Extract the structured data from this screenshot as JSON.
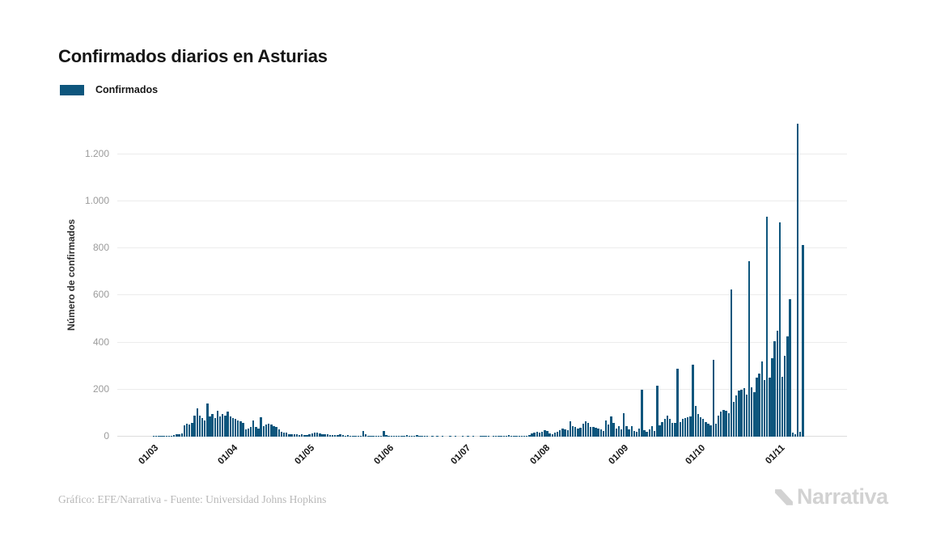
{
  "header": {
    "title": "Confirmados diarios en Asturias"
  },
  "legend": {
    "label": "Confirmados"
  },
  "footer": {
    "credit": "Gráfico: EFE/Narrativa - Fuente: Universidad Johns Hopkins",
    "logo_text": "Narrativa"
  },
  "chart_data": {
    "type": "bar",
    "title": "Confirmados diarios en Asturias",
    "series_name": "Confirmados",
    "ylabel": "Número de confirmados",
    "xlabel": "",
    "ylim": [
      0,
      1375
    ],
    "grid": "horizontal",
    "legend_position": "top-left",
    "bar_color": "#0e567d",
    "grid_color": "#ececec",
    "axis_color": "#dcdcdc",
    "ytick_color": "#9b9b9b",
    "xtick_color": "#161616",
    "yticks": [
      0,
      200,
      400,
      600,
      800,
      1000,
      1200
    ],
    "ytick_labels": [
      "0",
      "200",
      "400",
      "600",
      "800",
      "1.000",
      "1.200"
    ],
    "xtick_labels": [
      "01/03",
      "01/04",
      "01/05",
      "01/06",
      "01/07",
      "01/08",
      "01/09",
      "01/10",
      "01/11"
    ],
    "xtick_day_indices": [
      0,
      31,
      61,
      92,
      122,
      153,
      184,
      214,
      245
    ],
    "x_start_date": "01/03",
    "values": [
      1,
      1,
      2,
      2,
      3,
      2,
      4,
      5,
      8,
      10,
      12,
      15,
      48,
      55,
      52,
      58,
      88,
      120,
      90,
      78,
      70,
      140,
      85,
      96,
      78,
      110,
      85,
      95,
      90,
      105,
      85,
      80,
      76,
      70,
      65,
      58,
      32,
      36,
      42,
      70,
      40,
      35,
      82,
      46,
      52,
      55,
      50,
      45,
      40,
      30,
      20,
      16,
      18,
      12,
      10,
      12,
      9,
      8,
      10,
      8,
      7,
      10,
      13,
      16,
      18,
      15,
      12,
      10,
      9,
      8,
      7,
      6,
      8,
      9,
      7,
      5,
      6,
      5,
      4,
      4,
      3,
      4,
      23,
      9,
      4,
      3,
      2,
      3,
      2,
      4,
      25,
      6,
      5,
      3,
      2,
      4,
      3,
      2,
      4,
      8,
      3,
      2,
      4,
      8,
      3,
      2,
      1,
      1,
      0,
      1,
      0,
      1,
      0,
      1,
      0,
      0,
      1,
      0,
      1,
      0,
      0,
      1,
      0,
      1,
      0,
      1,
      0,
      0,
      1,
      2,
      1,
      2,
      0,
      1,
      4,
      1,
      2,
      4,
      5,
      7,
      4,
      2,
      3,
      5,
      5,
      4,
      3,
      6,
      14,
      16,
      20,
      18,
      22,
      28,
      24,
      14,
      10,
      18,
      22,
      28,
      35,
      30,
      26,
      65,
      45,
      40,
      34,
      38,
      55,
      67,
      60,
      40,
      42,
      38,
      34,
      30,
      24,
      70,
      52,
      86,
      58,
      35,
      45,
      30,
      100,
      45,
      30,
      45,
      25,
      20,
      35,
      200,
      28,
      22,
      30,
      45,
      25,
      215,
      48,
      62,
      76,
      90,
      74,
      60,
      60,
      290,
      62,
      76,
      78,
      82,
      86,
      305,
      130,
      95,
      82,
      76,
      62,
      55,
      48,
      325,
      55,
      90,
      105,
      115,
      110,
      100,
      625,
      148,
      175,
      195,
      200,
      205,
      180,
      745,
      210,
      190,
      250,
      268,
      320,
      240,
      935,
      250,
      335,
      405,
      450,
      910,
      255,
      345,
      425,
      585,
      18,
      12,
      1330,
      20,
      815
    ]
  }
}
